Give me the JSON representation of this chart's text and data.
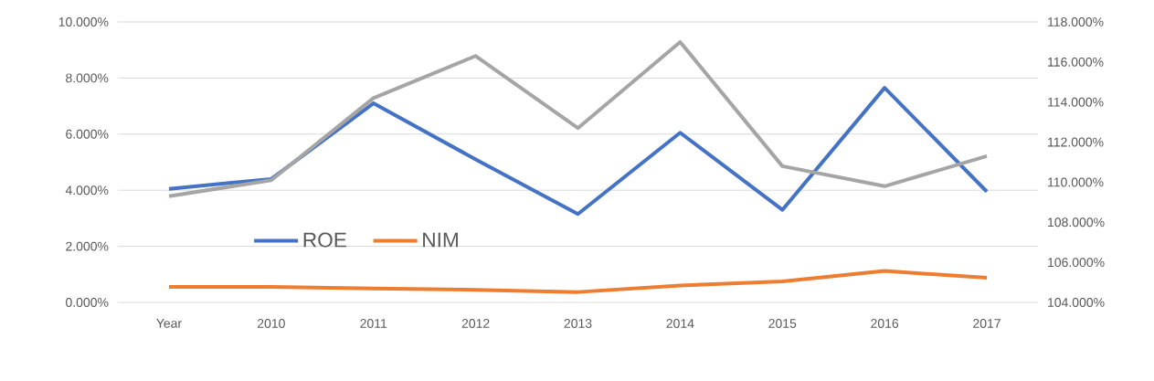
{
  "chart_data": {
    "type": "line",
    "categories": [
      "Year",
      "2010",
      "2011",
      "2012",
      "2013",
      "2014",
      "2015",
      "2016",
      "2017"
    ],
    "series": [
      {
        "name": "ROE",
        "color": "#4472c4",
        "values": [
          4.05,
          4.4,
          7.1,
          5.1,
          3.15,
          6.05,
          3.3,
          7.65,
          3.95
        ]
      },
      {
        "name": "NIM",
        "color": "#ed7d31",
        "values": [
          0.55,
          0.55,
          0.5,
          0.45,
          0.37,
          0.6,
          0.75,
          1.12,
          0.88
        ]
      },
      {
        "color": "#a5a5a5",
        "axis": "y2",
        "values": [
          109.3,
          110.1,
          114.2,
          116.3,
          112.7,
          117.0,
          110.8,
          109.8,
          111.3
        ]
      }
    ],
    "ylim": [
      0,
      10
    ],
    "yticks": [
      {
        "value": 0,
        "label": "0.000%"
      },
      {
        "value": 2,
        "label": "2.000%"
      },
      {
        "value": 4,
        "label": "4.000%"
      },
      {
        "value": 6,
        "label": "6.000%"
      },
      {
        "value": 8,
        "label": "8.000%"
      },
      {
        "value": 10,
        "label": "10.000%"
      }
    ],
    "y2lim": [
      104,
      118
    ],
    "y2ticks": [
      {
        "value": 104,
        "label": "104.000%"
      },
      {
        "value": 106,
        "label": "106.000%"
      },
      {
        "value": 108,
        "label": "108.000%"
      },
      {
        "value": 110,
        "label": "110.000%"
      },
      {
        "value": 112,
        "label": "112.000%"
      },
      {
        "value": 114,
        "label": "114.000%"
      },
      {
        "value": 116,
        "label": "116.000%"
      },
      {
        "value": 118,
        "label": "118.000%"
      }
    ],
    "grid": "y",
    "legend": "left",
    "marker": "none",
    "line_style": "solid"
  }
}
